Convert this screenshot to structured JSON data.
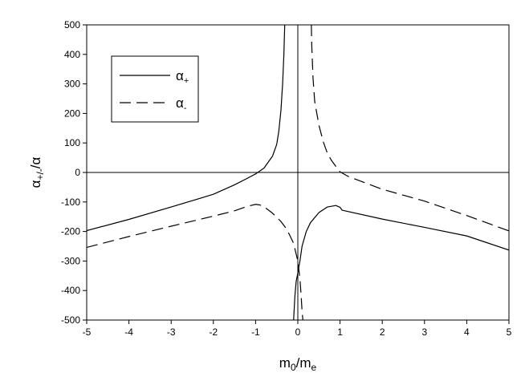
{
  "chart_data": {
    "type": "line",
    "title": "",
    "xlabel": {
      "base": "m",
      "sub1": "0",
      "mid": "/m",
      "sub2": "e"
    },
    "ylabel": {
      "base": "α",
      "sub": "+/-",
      "tail": "/α"
    },
    "xlim": [
      -5,
      5
    ],
    "ylim": [
      -500,
      500
    ],
    "xticks": [
      "-5",
      "-4",
      "-3",
      "-2",
      "-1",
      "0",
      "1",
      "2",
      "3",
      "4",
      "5"
    ],
    "yticks": [
      "500",
      "400",
      "300",
      "200",
      "100",
      "0",
      "-100",
      "-200",
      "-300",
      "-400",
      "-500"
    ],
    "grid": false,
    "reference_lines": {
      "x": 0,
      "y": 0
    },
    "legend_position": "top-left",
    "series": [
      {
        "name": "α+",
        "legend_base": "α",
        "legend_sub": "+",
        "style": "solid",
        "color": "#000000",
        "segments": [
          [
            [
              -5,
              -197
            ],
            [
              -4,
              -159
            ],
            [
              -3,
              -117
            ],
            [
              -2,
              -74
            ],
            [
              -1.5,
              -42
            ],
            [
              -1.2,
              -20
            ],
            [
              -1,
              -5
            ],
            [
              -0.8,
              15
            ],
            [
              -0.6,
              55
            ],
            [
              -0.5,
              95
            ],
            [
              -0.45,
              140
            ],
            [
              -0.4,
              210
            ],
            [
              -0.36,
              300
            ],
            [
              -0.33,
              400
            ],
            [
              -0.31,
              500
            ]
          ],
          [
            [
              -0.1,
              -500
            ],
            [
              -0.07,
              -420
            ],
            [
              -0.04,
              -370
            ],
            [
              0,
              -340
            ],
            [
              0.05,
              -300
            ],
            [
              0.1,
              -250
            ],
            [
              0.2,
              -200
            ],
            [
              0.3,
              -170
            ],
            [
              0.5,
              -136
            ],
            [
              0.7,
              -117
            ],
            [
              0.9,
              -112
            ],
            [
              1,
              -118
            ],
            [
              1.05,
              -128
            ],
            [
              2,
              -158
            ],
            [
              3,
              -186
            ],
            [
              4,
              -215
            ],
            [
              5,
              -263
            ]
          ]
        ]
      },
      {
        "name": "α-",
        "legend_base": "α",
        "legend_sub": "-",
        "style": "dashed",
        "color": "#000000",
        "segments": [
          [
            [
              -5,
              -254
            ],
            [
              -4,
              -217
            ],
            [
              -3,
              -182
            ],
            [
              -2,
              -148
            ],
            [
              -1.5,
              -130
            ],
            [
              -1.2,
              -115
            ],
            [
              -1,
              -108
            ],
            [
              -0.9,
              -110
            ],
            [
              -0.8,
              -116
            ],
            [
              -0.6,
              -138
            ],
            [
              -0.4,
              -166
            ],
            [
              -0.3,
              -185
            ],
            [
              -0.2,
              -210
            ],
            [
              -0.1,
              -240
            ],
            [
              -0.05,
              -270
            ],
            [
              0,
              -300
            ],
            [
              0.05,
              -360
            ],
            [
              0.08,
              -420
            ],
            [
              0.1,
              -470
            ],
            [
              0.12,
              -500
            ]
          ],
          [
            [
              0.32,
              500
            ],
            [
              0.33,
              430
            ],
            [
              0.36,
              320
            ],
            [
              0.4,
              240
            ],
            [
              0.5,
              160
            ],
            [
              0.6,
              105
            ],
            [
              0.7,
              65
            ],
            [
              0.8,
              40
            ],
            [
              1,
              2
            ],
            [
              1.2,
              -14
            ],
            [
              1.5,
              -30
            ],
            [
              2,
              -57
            ],
            [
              3,
              -97
            ],
            [
              4,
              -146
            ],
            [
              5,
              -198
            ]
          ]
        ]
      }
    ]
  }
}
